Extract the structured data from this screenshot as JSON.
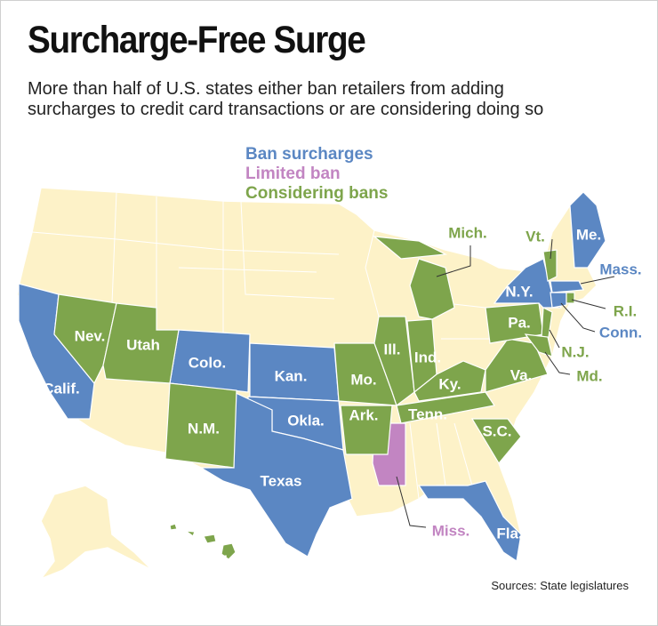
{
  "header": {
    "title": "Surcharge-Free Surge",
    "subtitle": "More than half of U.S. states either ban retailers from adding surcharges to credit card transactions or are considering doing so"
  },
  "legend": [
    {
      "name": "Ban surcharges",
      "color": "#5b87c3",
      "states": [
        "Calif.",
        "Colo.",
        "Kan.",
        "Okla.",
        "Texas",
        "Fla.",
        "N.Y.",
        "Me.",
        "Mass.",
        "Conn."
      ]
    },
    {
      "name": "Limited ban",
      "color": "#c285c2",
      "states": [
        "Miss."
      ]
    },
    {
      "name": "Considering bans",
      "color": "#7ea54c",
      "states": [
        "Nev.",
        "Utah",
        "N.M.",
        "Mo.",
        "Ark.",
        "Ill.",
        "Ind.",
        "Mich.",
        "Ky.",
        "Tenn.",
        "Va.",
        "Pa.",
        "S.C.",
        "Vt.",
        "R.I.",
        "N.J.",
        "Md.",
        "Hawaii"
      ]
    }
  ],
  "source": "Sources: State legislatures"
}
